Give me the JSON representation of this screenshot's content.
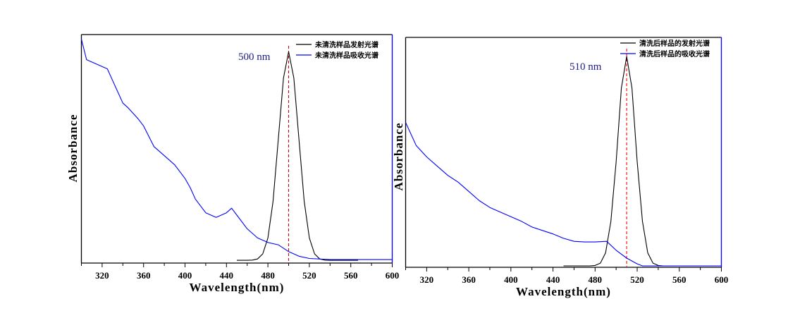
{
  "chart_data": [
    {
      "type": "line",
      "title": "",
      "xlabel": "Wavelength(nm)",
      "ylabel": "Absorbance",
      "xlim": [
        300,
        600
      ],
      "ylim": [
        0,
        1
      ],
      "xticks": [
        320,
        360,
        400,
        440,
        480,
        520,
        560,
        600
      ],
      "grid": false,
      "legend_position": "top-right",
      "annotation": {
        "text": "500 nm",
        "x": 500
      },
      "colors": {
        "emission": "#000000",
        "absorption": "#0000ff",
        "marker_line": "#cc0000",
        "annotation": "#1c1c8c",
        "right_axis": "#0000ff"
      },
      "series": [
        {
          "name": "未清洗样品发射光谱",
          "kind": "emission",
          "x": [
            450,
            460,
            465,
            470,
            475,
            480,
            485,
            490,
            495,
            500,
            505,
            510,
            515,
            520,
            525,
            530,
            535,
            540,
            567
          ],
          "y": [
            0.012,
            0.012,
            0.013,
            0.018,
            0.04,
            0.11,
            0.27,
            0.54,
            0.81,
            0.925,
            0.81,
            0.54,
            0.27,
            0.11,
            0.04,
            0.018,
            0.013,
            0.012,
            0.012
          ]
        },
        {
          "name": "未清洗样品吸收光谱",
          "kind": "absorption",
          "x": [
            300,
            305,
            310,
            320,
            325,
            330,
            340,
            345,
            355,
            360,
            370,
            380,
            390,
            400,
            405,
            410,
            420,
            430,
            440,
            445,
            450,
            460,
            470,
            480,
            490,
            500,
            510,
            520,
            540,
            600
          ],
          "y": [
            0.98,
            0.89,
            0.88,
            0.86,
            0.85,
            0.8,
            0.7,
            0.68,
            0.63,
            0.6,
            0.51,
            0.47,
            0.43,
            0.37,
            0.33,
            0.28,
            0.22,
            0.2,
            0.22,
            0.24,
            0.21,
            0.15,
            0.11,
            0.09,
            0.08,
            0.05,
            0.03,
            0.02,
            0.015,
            0.015
          ]
        }
      ]
    },
    {
      "type": "line",
      "title": "",
      "xlabel": "Wavelength(nm)",
      "ylabel": "Absorbance",
      "xlim": [
        300,
        600
      ],
      "ylim": [
        0,
        1
      ],
      "xticks": [
        320,
        360,
        400,
        440,
        480,
        520,
        560,
        600
      ],
      "grid": false,
      "legend_position": "top-right",
      "annotation": {
        "text": "510 nm",
        "x": 510
      },
      "colors": {
        "emission": "#000000",
        "absorption": "#0000ff",
        "marker_line": "#ff0000",
        "annotation": "#1c1c8c",
        "right_axis": "#0000ff"
      },
      "series": [
        {
          "name": "清洗后样品的发射光谱",
          "kind": "emission",
          "x": [
            450,
            475,
            480,
            485,
            490,
            495,
            500,
            505,
            510,
            515,
            520,
            525,
            530,
            535,
            540,
            545,
            600
          ],
          "y": [
            0.006,
            0.006,
            0.008,
            0.018,
            0.063,
            0.2,
            0.46,
            0.78,
            0.917,
            0.78,
            0.46,
            0.2,
            0.063,
            0.018,
            0.008,
            0.006,
            0.006
          ]
        },
        {
          "name": "清洗后样品的吸收光谱",
          "kind": "absorption",
          "x": [
            300,
            310,
            320,
            330,
            340,
            350,
            360,
            370,
            380,
            390,
            400,
            410,
            420,
            430,
            440,
            450,
            460,
            470,
            480,
            491,
            500,
            510,
            520,
            525,
            600
          ],
          "y": [
            0.63,
            0.53,
            0.48,
            0.44,
            0.4,
            0.37,
            0.33,
            0.29,
            0.26,
            0.24,
            0.22,
            0.2,
            0.175,
            0.16,
            0.145,
            0.126,
            0.113,
            0.11,
            0.11,
            0.113,
            0.074,
            0.04,
            0.015,
            0.006,
            0.006
          ]
        }
      ]
    }
  ]
}
